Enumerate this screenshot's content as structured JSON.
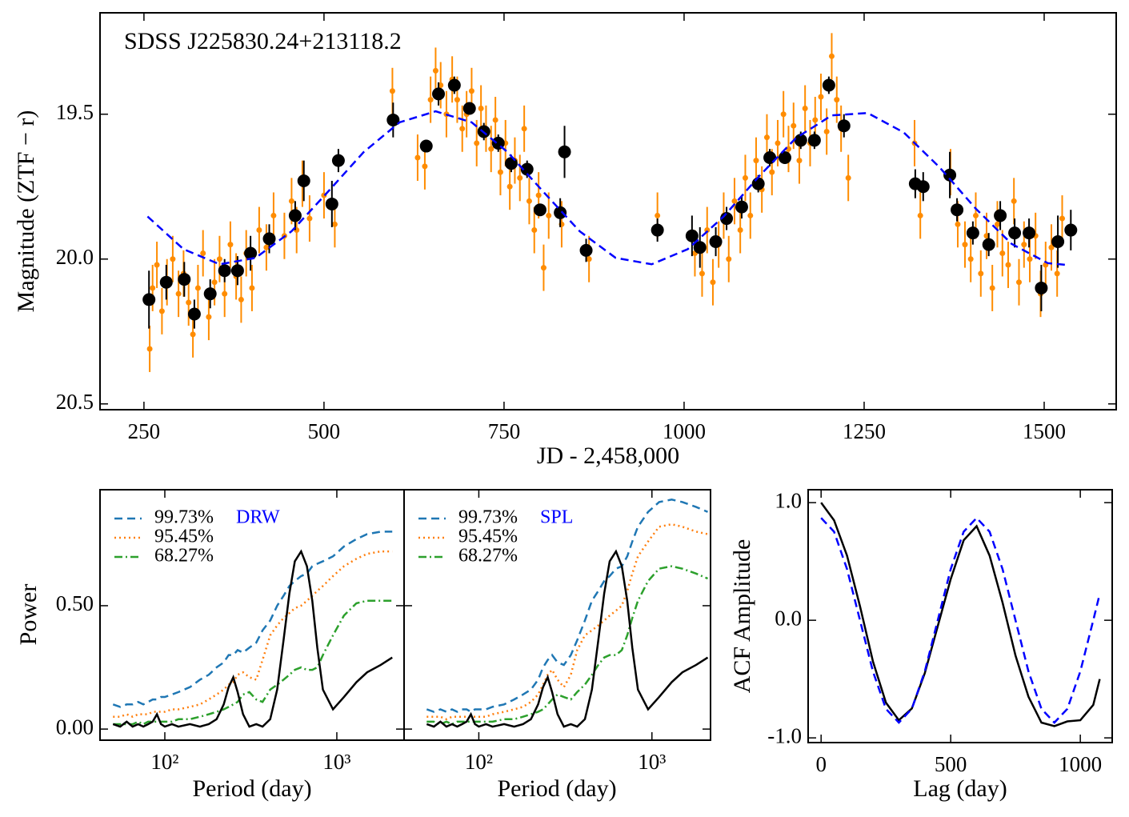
{
  "chart_data": [
    {
      "type": "errorbar",
      "annotation": "SDSS J225830.24+213118.2",
      "xlabel": "JD - 2,458,000",
      "ylabel": "Magnitude (ZTF − r)",
      "xlim": [
        189,
        1600
      ],
      "ylim": [
        19.15,
        20.52
      ],
      "y_inverted": true,
      "xticks": [
        250,
        500,
        750,
        1000,
        1250,
        1500
      ],
      "yticks": [
        19.5,
        {
          "value": 20,
          "label": "20.0"
        },
        20.5
      ],
      "series": [
        {
          "color": "#ff8c00",
          "marker_size": 3.5,
          "x": [
            258,
            262,
            268,
            275,
            282,
            290,
            298,
            305,
            312,
            318,
            325,
            332,
            340,
            348,
            355,
            362,
            370,
            378,
            385,
            392,
            400,
            410,
            420,
            430,
            445,
            455,
            462,
            470,
            480,
            500,
            515,
            595,
            630,
            640,
            648,
            655,
            662,
            670,
            678,
            685,
            692,
            698,
            705,
            712,
            718,
            725,
            732,
            738,
            745,
            752,
            758,
            765,
            772,
            778,
            785,
            792,
            798,
            805,
            812,
            830,
            868,
            963,
            1015,
            1025,
            1032,
            1040,
            1048,
            1055,
            1062,
            1070,
            1078,
            1085,
            1092,
            1100,
            1108,
            1115,
            1122,
            1130,
            1138,
            1145,
            1152,
            1160,
            1168,
            1175,
            1182,
            1190,
            1198,
            1205,
            1212,
            1218,
            1228,
            1320,
            1328,
            1370,
            1380,
            1390,
            1398,
            1405,
            1412,
            1420,
            1428,
            1435,
            1442,
            1450,
            1458,
            1465,
            1472,
            1480,
            1488,
            1495,
            1502,
            1510,
            1518,
            1525
          ],
          "values": [
            20.31,
            20.1,
            20.02,
            20.18,
            20.08,
            20.0,
            20.12,
            20.05,
            20.15,
            20.26,
            20.1,
            19.98,
            20.2,
            20.08,
            20.0,
            20.12,
            19.95,
            20.06,
            20.14,
            19.98,
            20.1,
            19.9,
            19.96,
            19.85,
            19.92,
            19.8,
            19.9,
            19.74,
            19.86,
            19.78,
            19.88,
            19.42,
            19.65,
            19.68,
            19.45,
            19.35,
            19.4,
            19.5,
            19.38,
            19.45,
            19.55,
            19.5,
            19.42,
            19.6,
            19.48,
            19.55,
            19.62,
            19.52,
            19.7,
            19.6,
            19.75,
            19.66,
            19.72,
            19.55,
            19.8,
            19.9,
            19.78,
            20.03,
            19.85,
            19.88,
            20.0,
            19.85,
            19.98,
            20.05,
            19.9,
            20.08,
            19.95,
            19.85,
            20.0,
            19.8,
            19.9,
            19.72,
            19.85,
            19.66,
            19.76,
            19.58,
            19.7,
            19.6,
            19.5,
            19.62,
            19.54,
            19.66,
            19.48,
            19.6,
            19.52,
            19.44,
            19.56,
            19.3,
            19.45,
            19.55,
            19.72,
            19.6,
            19.85,
            19.7,
            19.88,
            19.95,
            20.0,
            19.85,
            20.05,
            19.92,
            20.1,
            19.88,
            19.98,
            20.02,
            19.8,
            20.08,
            19.95,
            20.0,
            19.92,
            20.12,
            20.02,
            19.96,
            20.05,
            19.86
          ],
          "errors": 0.08
        },
        {
          "color": "#000000",
          "marker_size": 8,
          "x": [
            257,
            281,
            306,
            320,
            342,
            362,
            380,
            398,
            424,
            460,
            472,
            511,
            520,
            596,
            642,
            659,
            681,
            702,
            722,
            742,
            760,
            782,
            800,
            828,
            834,
            864,
            963,
            1011,
            1022,
            1044,
            1059,
            1080,
            1103,
            1119,
            1140,
            1162,
            1181,
            1201,
            1222,
            1321,
            1332,
            1369,
            1379,
            1401,
            1423,
            1439,
            1459,
            1479,
            1496,
            1519,
            1537
          ],
          "values": [
            20.14,
            20.08,
            20.07,
            20.19,
            20.12,
            20.04,
            20.04,
            19.98,
            19.93,
            19.85,
            19.73,
            19.81,
            19.66,
            19.52,
            19.61,
            19.43,
            19.4,
            19.48,
            19.56,
            19.6,
            19.67,
            19.69,
            19.83,
            19.84,
            19.63,
            19.97,
            19.9,
            19.92,
            19.96,
            19.94,
            19.86,
            19.82,
            19.74,
            19.65,
            19.65,
            19.59,
            19.59,
            19.4,
            19.54,
            19.74,
            19.75,
            19.71,
            19.83,
            19.91,
            19.95,
            19.85,
            19.91,
            19.91,
            20.1,
            19.94,
            19.9
          ],
          "errors": [
            0.1,
            0.06,
            0.06,
            0.05,
            0.05,
            0.04,
            0.05,
            0.06,
            0.05,
            0.05,
            0.07,
            0.08,
            0.04,
            0.06,
            0.02,
            0.04,
            0.03,
            0.02,
            0.03,
            0.03,
            0.03,
            0.03,
            0.02,
            0.05,
            0.09,
            0.04,
            0.04,
            0.07,
            0.07,
            0.05,
            0.04,
            0.04,
            0.03,
            0.03,
            0.02,
            0.03,
            0.03,
            0.03,
            0.04,
            0.05,
            0.05,
            0.08,
            0.04,
            0.04,
            0.04,
            0.05,
            0.05,
            0.05,
            0.08,
            0.09,
            0.07
          ]
        },
        {
          "color": "#0000ff",
          "style": "dashed",
          "x": [
            255,
            305,
            355,
            405,
            455,
            505,
            555,
            605,
            655,
            705,
            755,
            805,
            855,
            905,
            955,
            1005,
            1055,
            1105,
            1155,
            1205,
            1255,
            1305,
            1355,
            1405,
            1455,
            1505,
            1530
          ],
          "values": [
            19.853,
            19.966,
            20.018,
            19.996,
            19.904,
            19.769,
            19.631,
            19.528,
            19.49,
            19.528,
            19.631,
            19.769,
            19.904,
            19.996,
            20.018,
            19.966,
            19.853,
            19.712,
            19.583,
            19.504,
            19.496,
            19.563,
            19.684,
            19.826,
            19.948,
            20.014,
            20.02
          ]
        }
      ]
    },
    {
      "type": "line",
      "xscale": "log",
      "xlabel": "Period (day)",
      "ylabel": "Power",
      "annotation": "DRW",
      "annotation_color": "#0000ff",
      "xlim": [
        42,
        2460
      ],
      "ylim": [
        -0.045,
        0.97
      ],
      "xticks": [
        {
          "value": 100,
          "label": "10²"
        },
        {
          "value": 1000,
          "label": "10³"
        }
      ],
      "yticks": [
        {
          "value": 0,
          "label": "0.00"
        },
        {
          "value": 0.5,
          "label": "0.50"
        }
      ],
      "x": [
        50,
        55,
        60,
        65,
        70,
        75,
        80,
        85,
        90,
        95,
        100,
        110,
        120,
        140,
        160,
        180,
        200,
        220,
        235,
        250,
        265,
        285,
        310,
        340,
        370,
        410,
        450,
        490,
        530,
        570,
        620,
        670,
        720,
        770,
        830,
        950,
        1100,
        1300,
        1500,
        1800,
        2100
      ],
      "series": [
        {
          "name": "99.73%",
          "color": "#1f77b4",
          "style": "dashed",
          "values": [
            0.1,
            0.09,
            0.1,
            0.1,
            0.11,
            0.1,
            0.11,
            0.12,
            0.12,
            0.13,
            0.13,
            0.14,
            0.15,
            0.17,
            0.2,
            0.22,
            0.25,
            0.27,
            0.3,
            0.3,
            0.32,
            0.31,
            0.33,
            0.35,
            0.4,
            0.44,
            0.5,
            0.54,
            0.58,
            0.6,
            0.62,
            0.63,
            0.66,
            0.67,
            0.68,
            0.7,
            0.74,
            0.77,
            0.79,
            0.8,
            0.8
          ]
        },
        {
          "name": "95.45%",
          "color": "#ff7f0e",
          "style": "dotted",
          "values": [
            0.05,
            0.05,
            0.06,
            0.05,
            0.06,
            0.06,
            0.06,
            0.07,
            0.07,
            0.07,
            0.07,
            0.08,
            0.08,
            0.09,
            0.1,
            0.12,
            0.14,
            0.16,
            0.18,
            0.19,
            0.22,
            0.23,
            0.21,
            0.2,
            0.28,
            0.38,
            0.42,
            0.45,
            0.47,
            0.49,
            0.5,
            0.52,
            0.54,
            0.56,
            0.58,
            0.62,
            0.66,
            0.69,
            0.71,
            0.72,
            0.72
          ]
        },
        {
          "name": "68.27%",
          "color": "#2ca02c",
          "style": "dashdot",
          "values": [
            0.02,
            0.02,
            0.02,
            0.02,
            0.03,
            0.02,
            0.03,
            0.03,
            0.03,
            0.03,
            0.03,
            0.03,
            0.04,
            0.04,
            0.05,
            0.06,
            0.07,
            0.08,
            0.09,
            0.1,
            0.11,
            0.14,
            0.15,
            0.12,
            0.11,
            0.16,
            0.18,
            0.2,
            0.22,
            0.24,
            0.25,
            0.24,
            0.24,
            0.25,
            0.3,
            0.38,
            0.46,
            0.51,
            0.52,
            0.52,
            0.52
          ]
        },
        {
          "color": "#000000",
          "values": [
            0.02,
            0.01,
            0.03,
            0.01,
            0.02,
            0.01,
            0.02,
            0.03,
            0.06,
            0.02,
            0.01,
            0.02,
            0.01,
            0.02,
            0.01,
            0.02,
            0.04,
            0.1,
            0.17,
            0.21,
            0.15,
            0.06,
            0.01,
            0.02,
            0.01,
            0.04,
            0.16,
            0.36,
            0.55,
            0.68,
            0.72,
            0.66,
            0.52,
            0.33,
            0.16,
            0.08,
            0.13,
            0.19,
            0.23,
            0.26,
            0.29
          ]
        }
      ]
    },
    {
      "type": "line",
      "xscale": "log",
      "xlabel": "Period (day)",
      "annotation": "SPL",
      "annotation_color": "#0000ff",
      "sharey": true,
      "xlim": [
        37,
        2180
      ],
      "xticks": [
        {
          "value": 100,
          "label": "10²"
        },
        {
          "value": 1000,
          "label": "10³"
        }
      ],
      "x": [
        50,
        55,
        60,
        65,
        70,
        75,
        80,
        85,
        90,
        95,
        100,
        110,
        120,
        140,
        160,
        180,
        200,
        220,
        235,
        250,
        265,
        285,
        310,
        340,
        370,
        410,
        450,
        490,
        530,
        570,
        620,
        670,
        720,
        770,
        830,
        950,
        1100,
        1300,
        1500,
        1800,
        2100
      ],
      "series": [
        {
          "name": "99.73%",
          "color": "#1f77b4",
          "style": "dashed",
          "values": [
            0.08,
            0.07,
            0.08,
            0.07,
            0.08,
            0.07,
            0.08,
            0.08,
            0.07,
            0.08,
            0.08,
            0.08,
            0.09,
            0.1,
            0.12,
            0.14,
            0.16,
            0.2,
            0.25,
            0.28,
            0.3,
            0.27,
            0.26,
            0.3,
            0.36,
            0.44,
            0.52,
            0.56,
            0.6,
            0.62,
            0.65,
            0.66,
            0.7,
            0.76,
            0.82,
            0.88,
            0.92,
            0.93,
            0.92,
            0.9,
            0.88
          ]
        },
        {
          "name": "95.45%",
          "color": "#ff7f0e",
          "style": "dotted",
          "values": [
            0.05,
            0.05,
            0.05,
            0.04,
            0.05,
            0.05,
            0.05,
            0.05,
            0.05,
            0.05,
            0.05,
            0.05,
            0.06,
            0.07,
            0.08,
            0.09,
            0.11,
            0.14,
            0.18,
            0.22,
            0.24,
            0.2,
            0.17,
            0.22,
            0.32,
            0.38,
            0.4,
            0.42,
            0.44,
            0.46,
            0.48,
            0.5,
            0.56,
            0.63,
            0.7,
            0.76,
            0.82,
            0.83,
            0.82,
            0.8,
            0.79
          ]
        },
        {
          "name": "68.27%",
          "color": "#2ca02c",
          "style": "dashdot",
          "values": [
            0.03,
            0.03,
            0.02,
            0.03,
            0.02,
            0.03,
            0.03,
            0.03,
            0.03,
            0.03,
            0.03,
            0.03,
            0.03,
            0.04,
            0.04,
            0.05,
            0.06,
            0.07,
            0.08,
            0.1,
            0.12,
            0.14,
            0.13,
            0.12,
            0.15,
            0.18,
            0.22,
            0.26,
            0.29,
            0.3,
            0.3,
            0.32,
            0.38,
            0.45,
            0.52,
            0.6,
            0.65,
            0.66,
            0.65,
            0.63,
            0.61
          ]
        },
        {
          "color": "#000000",
          "values": [
            0.02,
            0.01,
            0.03,
            0.01,
            0.02,
            0.01,
            0.02,
            0.03,
            0.06,
            0.02,
            0.01,
            0.02,
            0.01,
            0.02,
            0.01,
            0.02,
            0.04,
            0.1,
            0.17,
            0.21,
            0.15,
            0.06,
            0.01,
            0.02,
            0.01,
            0.04,
            0.16,
            0.36,
            0.55,
            0.68,
            0.72,
            0.66,
            0.52,
            0.33,
            0.16,
            0.08,
            0.13,
            0.19,
            0.23,
            0.26,
            0.29
          ]
        }
      ]
    },
    {
      "type": "line",
      "xlabel": "Lag (day)",
      "ylabel": "ACF Amplitude",
      "xlim": [
        -50,
        1123
      ],
      "ylim": [
        -1.04,
        1.11
      ],
      "xticks": [
        0,
        500,
        1000
      ],
      "yticks": [
        {
          "value": -1,
          "label": "-1.0"
        },
        {
          "value": 0,
          "label": "0.0"
        },
        {
          "value": 1,
          "label": "1.0"
        }
      ],
      "x": [
        0,
        50,
        100,
        150,
        200,
        250,
        300,
        350,
        400,
        450,
        500,
        550,
        600,
        650,
        700,
        750,
        800,
        850,
        900,
        950,
        1000,
        1050,
        1075
      ],
      "series": [
        {
          "color": "#000000",
          "values": [
            1.0,
            0.85,
            0.55,
            0.12,
            -0.35,
            -0.7,
            -0.85,
            -0.75,
            -0.45,
            -0.05,
            0.35,
            0.68,
            0.8,
            0.55,
            0.15,
            -0.3,
            -0.65,
            -0.87,
            -0.9,
            -0.86,
            -0.85,
            -0.72,
            -0.5
          ]
        },
        {
          "color": "#0000ff",
          "style": "dashed",
          "values": [
            0.87,
            0.753,
            0.435,
            0,
            -0.435,
            -0.753,
            -0.87,
            -0.753,
            -0.435,
            0,
            0.435,
            0.753,
            0.87,
            0.753,
            0.435,
            0,
            -0.435,
            -0.753,
            -0.87,
            -0.753,
            -0.435,
            0,
            0.225
          ]
        }
      ]
    }
  ]
}
